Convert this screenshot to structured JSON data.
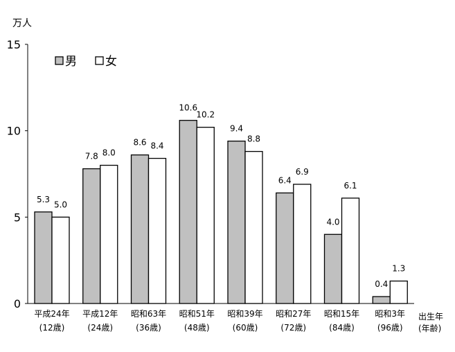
{
  "chart_data": {
    "type": "bar",
    "y_unit": "万人",
    "x_unit": [
      "出生年",
      "(年齢)"
    ],
    "categories": [
      [
        "平成24年",
        "(12歳)"
      ],
      [
        "平成12年",
        "(24歳)"
      ],
      [
        "昭和63年",
        "(36歳)"
      ],
      [
        "昭和51年",
        "(48歳)"
      ],
      [
        "昭和39年",
        "(60歳)"
      ],
      [
        "昭和27年",
        "(72歳)"
      ],
      [
        "昭和15年",
        "(84歳)"
      ],
      [
        "昭和3年",
        "(96歳)"
      ]
    ],
    "series": [
      {
        "name": "男",
        "color": "#c0c0c0",
        "values": [
          5.3,
          7.8,
          8.6,
          10.6,
          9.4,
          6.4,
          4.0,
          0.4
        ]
      },
      {
        "name": "女",
        "color": "#ffffff",
        "values": [
          5.0,
          8.0,
          8.4,
          10.2,
          8.8,
          6.9,
          6.1,
          1.3
        ]
      }
    ],
    "ylim": [
      0,
      15
    ],
    "yticks": [
      0,
      5,
      10,
      15
    ],
    "grid": false,
    "legend": "top-left"
  }
}
